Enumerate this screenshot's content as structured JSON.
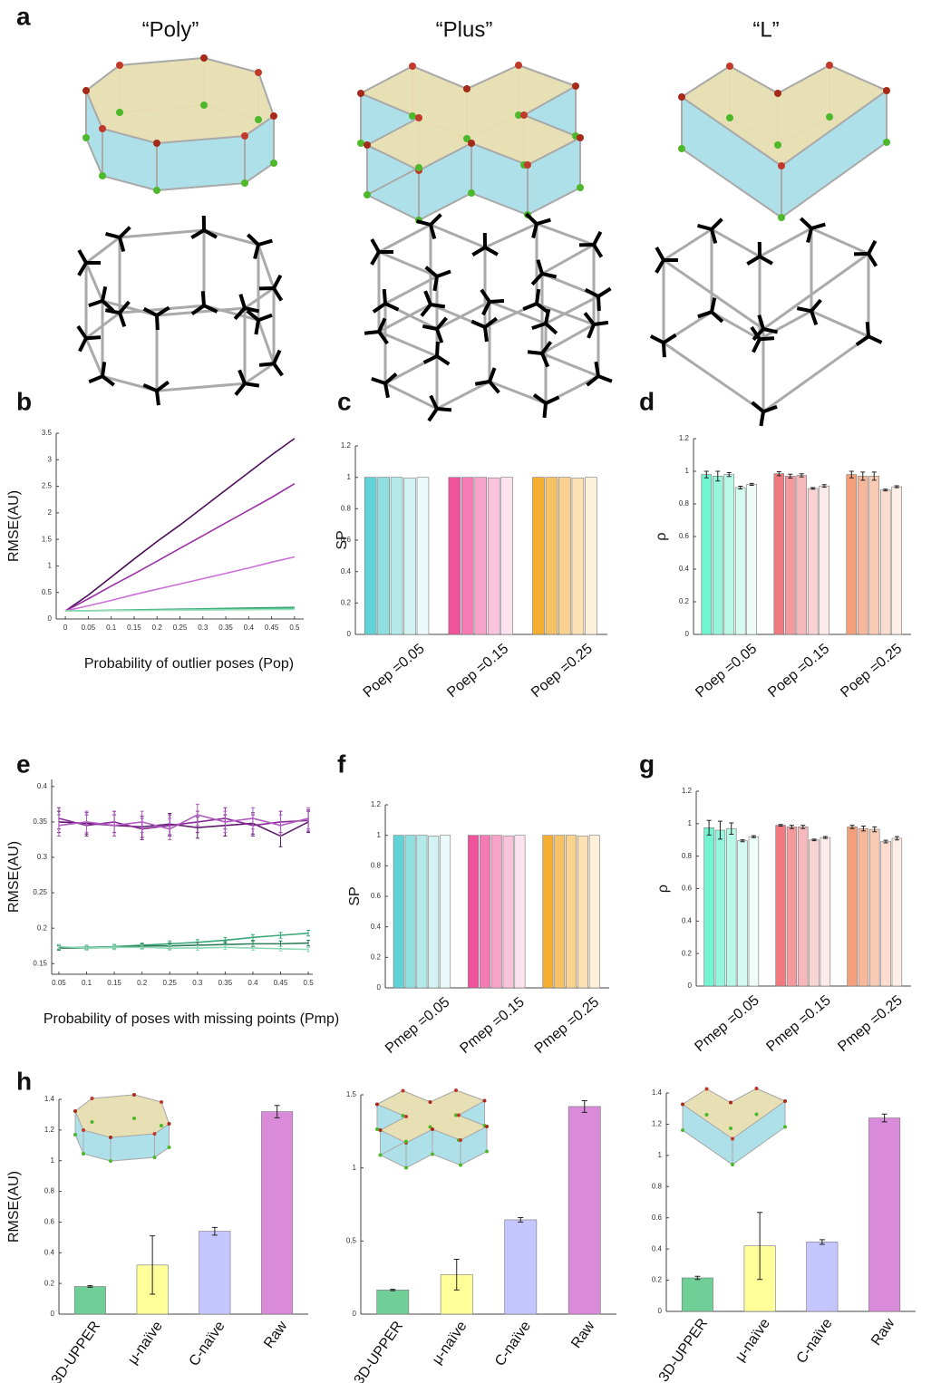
{
  "panel_a": {
    "panel": "a",
    "titles": [
      "“Poly”",
      "“Plus”",
      "“L”"
    ]
  },
  "chart_data": [
    {
      "type": "line",
      "panel": "b",
      "ylabel": "RMSE(AU)",
      "xlabel": "Probability of outlier poses (Pop)",
      "x": [
        0,
        0.05,
        0.1,
        0.15,
        0.2,
        0.25,
        0.3,
        0.35,
        0.4,
        0.45,
        0.5
      ],
      "xlim": [
        -0.02,
        0.52
      ],
      "xticks": [
        0,
        0.05,
        0.1,
        0.15,
        0.2,
        0.25,
        0.3,
        0.35,
        0.4,
        0.45,
        0.5
      ],
      "ylim": [
        0,
        3.5
      ],
      "yticks": [
        0,
        0.5,
        1,
        1.5,
        2,
        2.5,
        3,
        3.5
      ],
      "series": [
        {
          "color": "#4b0f5a",
          "values": [
            0.15,
            0.45,
            0.79,
            1.13,
            1.46,
            1.77,
            2.1,
            2.43,
            2.76,
            3.09,
            3.4
          ]
        },
        {
          "color": "#9b2fa5",
          "values": [
            0.15,
            0.38,
            0.62,
            0.85,
            1.09,
            1.33,
            1.57,
            1.81,
            2.05,
            2.29,
            2.55
          ]
        },
        {
          "color": "#cc6fd6",
          "values": [
            0.15,
            0.25,
            0.35,
            0.46,
            0.56,
            0.66,
            0.76,
            0.86,
            0.96,
            1.07,
            1.17
          ]
        },
        {
          "color": "#2e9e6a",
          "values": [
            0.15,
            0.157,
            0.164,
            0.171,
            0.178,
            0.185,
            0.192,
            0.199,
            0.206,
            0.213,
            0.22
          ]
        },
        {
          "color": "#4fbf8a",
          "values": [
            0.15,
            0.155,
            0.16,
            0.165,
            0.17,
            0.175,
            0.18,
            0.185,
            0.19,
            0.195,
            0.2
          ]
        },
        {
          "color": "#9edfc0",
          "values": [
            0.15,
            0.153,
            0.156,
            0.159,
            0.162,
            0.165,
            0.168,
            0.171,
            0.174,
            0.177,
            0.18
          ]
        }
      ]
    },
    {
      "type": "groupedbar",
      "panel": "c",
      "ylabel": "SP",
      "categories": [
        "Poep =0.05",
        "Poep =0.15",
        "Poep =0.25"
      ],
      "ylim": [
        0,
        1.2
      ],
      "yticks": [
        0,
        0.2,
        0.4,
        0.6,
        0.8,
        1,
        1.2
      ],
      "series": [
        {
          "colors": [
            "#5fd3d6",
            "#f0529c",
            "#f5ad32"
          ],
          "values": [
            1,
            1,
            1
          ]
        },
        {
          "colors": [
            "#8fdfe0",
            "#f47bb4",
            "#f7c165"
          ],
          "values": [
            1,
            1,
            1
          ]
        },
        {
          "colors": [
            "#b4e9ea",
            "#f7a3c9",
            "#f9d28f"
          ],
          "values": [
            1,
            1,
            1
          ]
        },
        {
          "colors": [
            "#d2f2f3",
            "#fac3dc",
            "#fbe1b4"
          ],
          "values": [
            0.995,
            0.997,
            0.995
          ]
        },
        {
          "colors": [
            "#eafafa",
            "#fde3ef",
            "#fdf0d9"
          ],
          "values": [
            1,
            1,
            1
          ]
        }
      ]
    },
    {
      "type": "groupedbar",
      "panel": "d",
      "ylabel": "ρ",
      "categories": [
        "Poep =0.05",
        "Poep =0.15",
        "Poep =0.25"
      ],
      "ylim": [
        0,
        1.2
      ],
      "yticks": [
        0,
        0.2,
        0.4,
        0.6,
        0.8,
        1,
        1.2
      ],
      "series": [
        {
          "colors": [
            "#6ff5d0",
            "#f07a80",
            "#f5a07a"
          ],
          "values": [
            0.98,
            0.985,
            0.98
          ],
          "errors": [
            0.02,
            0.012,
            0.02
          ]
        },
        {
          "colors": [
            "#95f6dc",
            "#f39a9e",
            "#f7b79a"
          ],
          "values": [
            0.97,
            0.97,
            0.97
          ],
          "errors": [
            0.03,
            0.012,
            0.025
          ]
        },
        {
          "colors": [
            "#b8f8e6",
            "#f6b8ba",
            "#f9cbb5"
          ],
          "values": [
            0.98,
            0.975,
            0.97
          ],
          "errors": [
            0.012,
            0.01,
            0.025
          ]
        },
        {
          "colors": [
            "#d5fbf0",
            "#f9d3d4",
            "#fbdccf"
          ],
          "values": [
            0.9,
            0.895,
            0.885
          ],
          "errors": [
            0.008,
            0.005,
            0.005
          ]
        },
        {
          "colors": [
            "#eefdf8",
            "#fcebeb",
            "#fdeee7"
          ],
          "values": [
            0.92,
            0.91,
            0.905
          ],
          "errors": [
            0.006,
            0.008,
            0.006
          ]
        }
      ]
    },
    {
      "type": "line",
      "panel": "e",
      "ylabel": "RMSE(AU)",
      "xlabel": "Probability of poses with missing points (Pmp)",
      "x": [
        0.05,
        0.1,
        0.15,
        0.2,
        0.25,
        0.3,
        0.35,
        0.4,
        0.45,
        0.5
      ],
      "xlim": [
        0.037,
        0.508
      ],
      "xticks": [
        0.05,
        0.1,
        0.15,
        0.2,
        0.25,
        0.3,
        0.35,
        0.4,
        0.45,
        0.5
      ],
      "ylim": [
        0.135,
        0.41
      ],
      "yticks": [
        0.15,
        0.2,
        0.25,
        0.3,
        0.35,
        0.4
      ],
      "series": [
        {
          "color": "#5a1a6a",
          "values": [
            0.35,
            0.348,
            0.345,
            0.343,
            0.347,
            0.342,
            0.345,
            0.348,
            0.33,
            0.35
          ],
          "errors": [
            0.015,
            0.015,
            0.015,
            0.015,
            0.015,
            0.015,
            0.015,
            0.015,
            0.015,
            0.015
          ]
        },
        {
          "color": "#8a2a9a",
          "values": [
            0.355,
            0.345,
            0.35,
            0.34,
            0.345,
            0.35,
            0.355,
            0.345,
            0.35,
            0.352
          ],
          "errors": [
            0.015,
            0.015,
            0.015,
            0.015,
            0.015,
            0.015,
            0.015,
            0.015,
            0.015,
            0.015
          ]
        },
        {
          "color": "#b05cc0",
          "values": [
            0.345,
            0.35,
            0.345,
            0.35,
            0.34,
            0.36,
            0.35,
            0.355,
            0.345,
            0.355
          ],
          "errors": [
            0.015,
            0.015,
            0.015,
            0.015,
            0.015,
            0.015,
            0.015,
            0.015,
            0.015,
            0.015
          ]
        },
        {
          "color": "#3aa878",
          "values": [
            0.173,
            0.173,
            0.174,
            0.176,
            0.178,
            0.18,
            0.183,
            0.187,
            0.19,
            0.193
          ],
          "errors": [
            0.003,
            0.003,
            0.003,
            0.003,
            0.004,
            0.004,
            0.004,
            0.004,
            0.004,
            0.004
          ]
        },
        {
          "color": "#2e7d5a",
          "values": [
            0.172,
            0.172,
            0.173,
            0.175,
            0.175,
            0.176,
            0.177,
            0.178,
            0.178,
            0.179
          ],
          "errors": [
            0.003,
            0.003,
            0.003,
            0.003,
            0.004,
            0.004,
            0.004,
            0.004,
            0.004,
            0.004
          ]
        },
        {
          "color": "#8fd8b5",
          "values": [
            0.174,
            0.172,
            0.173,
            0.173,
            0.172,
            0.172,
            0.173,
            0.172,
            0.171,
            0.17
          ],
          "errors": [
            0.003,
            0.003,
            0.003,
            0.003,
            0.003,
            0.003,
            0.003,
            0.003,
            0.003,
            0.003
          ]
        }
      ]
    },
    {
      "type": "groupedbar",
      "panel": "f",
      "ylabel": "SP",
      "categories": [
        "Pmep =0.05",
        "Pmep =0.15",
        "Pmep =0.25"
      ],
      "ylim": [
        0,
        1.2
      ],
      "yticks": [
        0,
        0.2,
        0.4,
        0.6,
        0.8,
        1,
        1.2
      ],
      "series": [
        {
          "colors": [
            "#5fd3d6",
            "#f0529c",
            "#f5ad32"
          ],
          "values": [
            1,
            1,
            1
          ]
        },
        {
          "colors": [
            "#8fdfe0",
            "#f47bb4",
            "#f7c165"
          ],
          "values": [
            1,
            1,
            1
          ]
        },
        {
          "colors": [
            "#b4e9ea",
            "#f7a3c9",
            "#f9d28f"
          ],
          "values": [
            1,
            1,
            1
          ]
        },
        {
          "colors": [
            "#d2f2f3",
            "#fac3dc",
            "#fbe1b4"
          ],
          "values": [
            0.995,
            0.997,
            0.995
          ]
        },
        {
          "colors": [
            "#eafafa",
            "#fde3ef",
            "#fdf0d9"
          ],
          "values": [
            1,
            1,
            1
          ]
        }
      ]
    },
    {
      "type": "groupedbar",
      "panel": "g",
      "ylabel": "ρ",
      "categories": [
        "Pmep =0.05",
        "Pmep =0.15",
        "Pmep =0.25"
      ],
      "ylim": [
        0,
        1.2
      ],
      "yticks": [
        0,
        0.2,
        0.4,
        0.6,
        0.8,
        1,
        1.2
      ],
      "series": [
        {
          "colors": [
            "#6ff5d0",
            "#f07a80",
            "#f5a07a"
          ],
          "values": [
            0.975,
            0.99,
            0.98
          ],
          "errors": [
            0.045,
            0.005,
            0.01
          ]
        },
        {
          "colors": [
            "#95f6dc",
            "#f39a9e",
            "#f7b79a"
          ],
          "values": [
            0.96,
            0.98,
            0.97
          ],
          "errors": [
            0.055,
            0.01,
            0.015
          ]
        },
        {
          "colors": [
            "#b8f8e6",
            "#f6b8ba",
            "#f9cbb5"
          ],
          "values": [
            0.97,
            0.98,
            0.965
          ],
          "errors": [
            0.035,
            0.01,
            0.015
          ]
        },
        {
          "colors": [
            "#d5fbf0",
            "#f9d3d4",
            "#fbdccf"
          ],
          "values": [
            0.895,
            0.9,
            0.89
          ],
          "errors": [
            0.006,
            0.005,
            0.008
          ]
        },
        {
          "colors": [
            "#eefdf8",
            "#fcebeb",
            "#fdeee7"
          ],
          "values": [
            0.92,
            0.915,
            0.91
          ],
          "errors": [
            0.006,
            0.006,
            0.01
          ]
        }
      ]
    },
    {
      "type": "bar",
      "panel": "h",
      "ylabel": "RMSE(AU)",
      "categories": [
        "3D-UPPER",
        "μ-naïve",
        "C-naïve",
        "Raw"
      ],
      "colors": [
        "#6fcf97",
        "#ffff99",
        "#c5c5ff",
        "#d98ad8"
      ],
      "values": [
        0.18,
        0.32,
        0.54,
        1.32
      ],
      "errors": [
        0.005,
        0.19,
        0.025,
        0.04
      ],
      "ylim": [
        0,
        1.4
      ],
      "yticks": [
        0,
        0.2,
        0.4,
        0.6,
        0.8,
        1,
        1.2,
        1.4
      ]
    },
    {
      "type": "bar",
      "categories": [
        "3D-UPPER",
        "μ-naïve",
        "C-naïve",
        "Raw"
      ],
      "colors": [
        "#6fcf97",
        "#ffff99",
        "#c5c5ff",
        "#d98ad8"
      ],
      "values": [
        0.165,
        0.27,
        0.645,
        1.42
      ],
      "errors": [
        0.005,
        0.105,
        0.015,
        0.04
      ],
      "ylim": [
        0,
        1.5
      ],
      "yticks": [
        0,
        0.5,
        1,
        1.5
      ]
    },
    {
      "type": "bar",
      "categories": [
        "3D-UPPER",
        "μ-naïve",
        "C-naïve",
        "Raw"
      ],
      "colors": [
        "#6fcf97",
        "#ffff99",
        "#c5c5ff",
        "#d98ad8"
      ],
      "values": [
        0.215,
        0.42,
        0.445,
        1.24
      ],
      "errors": [
        0.01,
        0.215,
        0.015,
        0.025
      ],
      "ylim": [
        0,
        1.4
      ],
      "yticks": [
        0,
        0.2,
        0.4,
        0.6,
        0.8,
        1,
        1.2,
        1.4
      ]
    }
  ]
}
